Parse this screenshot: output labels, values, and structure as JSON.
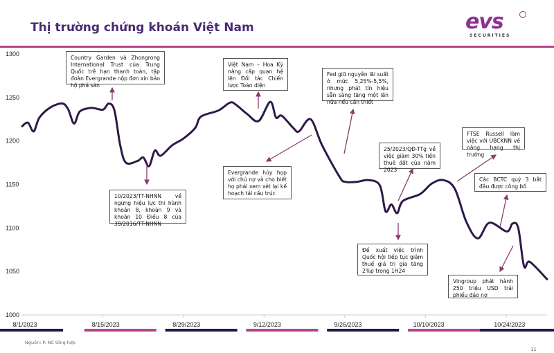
{
  "title": "Thị trường chứng khoán Việt Nam",
  "logo": {
    "text": "evs",
    "subtext": "SECURITIES"
  },
  "source": "Nguồn: P. NC tổng hợp",
  "page_number": "11",
  "colors": {
    "line": "#2e1a47",
    "arrow": "#8b3a6e",
    "accent": "#b5458a",
    "navy": "#1e1a4a",
    "title": "#4b2a72"
  },
  "chart_data": {
    "type": "line",
    "title": "",
    "xlabel": "",
    "ylabel": "",
    "ylim": [
      1000,
      1300
    ],
    "yticks": [
      1000,
      1050,
      1100,
      1150,
      1200,
      1250,
      1300
    ],
    "xticks": [
      "8/1/2023",
      "8/15/2023",
      "8/29/2023",
      "9/12/2023",
      "9/26/2023",
      "10/10/2023",
      "10/24/2023"
    ],
    "grid": false,
    "series": [
      {
        "points": [
          [
            "2023-08-01",
            1217
          ],
          [
            "2023-08-02",
            1221
          ],
          [
            "2023-08-03",
            1211
          ],
          [
            "2023-08-04",
            1227
          ],
          [
            "2023-08-06",
            1239
          ],
          [
            "2023-08-08",
            1243
          ],
          [
            "2023-08-09",
            1236
          ],
          [
            "2023-08-10",
            1220
          ],
          [
            "2023-08-11",
            1234
          ],
          [
            "2023-08-13",
            1238
          ],
          [
            "2023-08-15",
            1236
          ],
          [
            "2023-08-16",
            1243
          ],
          [
            "2023-08-17",
            1235
          ],
          [
            "2023-08-18",
            1195
          ],
          [
            "2023-08-19",
            1175
          ],
          [
            "2023-08-21",
            1177
          ],
          [
            "2023-08-22",
            1181
          ],
          [
            "2023-08-23",
            1171
          ],
          [
            "2023-08-24",
            1189
          ],
          [
            "2023-08-25",
            1183
          ],
          [
            "2023-08-27",
            1195
          ],
          [
            "2023-08-29",
            1203
          ],
          [
            "2023-08-31",
            1215
          ],
          [
            "2023-09-01",
            1228
          ],
          [
            "2023-09-04",
            1235
          ],
          [
            "2023-09-06",
            1244
          ],
          [
            "2023-09-07",
            1242
          ],
          [
            "2023-09-09",
            1231
          ],
          [
            "2023-09-11",
            1223
          ],
          [
            "2023-09-13",
            1245
          ],
          [
            "2023-09-14",
            1227
          ],
          [
            "2023-09-15",
            1229
          ],
          [
            "2023-09-17",
            1215
          ],
          [
            "2023-09-18",
            1211
          ],
          [
            "2023-09-20",
            1225
          ],
          [
            "2023-09-22",
            1195
          ],
          [
            "2023-09-25",
            1159
          ],
          [
            "2023-09-26",
            1153
          ],
          [
            "2023-09-28",
            1153
          ],
          [
            "2023-09-30",
            1155
          ],
          [
            "2023-10-02",
            1149
          ],
          [
            "2023-10-03",
            1119
          ],
          [
            "2023-10-04",
            1127
          ],
          [
            "2023-10-05",
            1117
          ],
          [
            "2023-10-06",
            1131
          ],
          [
            "2023-10-09",
            1139
          ],
          [
            "2023-10-11",
            1151
          ],
          [
            "2023-10-13",
            1155
          ],
          [
            "2023-10-15",
            1145
          ],
          [
            "2023-10-17",
            1107
          ],
          [
            "2023-10-19",
            1088
          ],
          [
            "2023-10-21",
            1106
          ],
          [
            "2023-10-24",
            1096
          ],
          [
            "2023-10-25",
            1105
          ],
          [
            "2023-10-26",
            1100
          ],
          [
            "2023-10-27",
            1056
          ],
          [
            "2023-10-28",
            1061
          ],
          [
            "2023-10-31",
            1041
          ]
        ]
      }
    ],
    "annotations": [
      "Country Garden và Zhongrong International Trust của Trung Quốc trễ hạn thanh toán, tập đoàn Evergrande nộp đơn xin bảo hộ phá sản",
      "10/2023/TT-NHNN về ngưng hiệu lực thi hành khoản 8, khoản 9 và khoản 10 Điều 8 của 39/2016/TT-NHNN",
      "Việt Nam – Hoa Kỳ nâng cấp quan hệ lên Đối tác Chiến lược Toàn diện",
      "Evergrande hủy họp với chủ nợ và cho biết họ phải xem xét lại kế hoạch tái cấu trúc",
      "Fed giữ nguyên lãi suất ở mức 5,25%-5,5%, nhưng phát tín hiệu sẵn sàng tăng một lần nữa nếu cần thiết",
      "25/2023/QĐ-TTg về việc giảm 30% tiền thuê đất của năm 2023",
      "Đề xuất việc trình Quốc hội tiếp tục giảm thuế giá trị gia tăng 2%p trong 1H24",
      "FTSE Russell làm việc với UBCKNN về nâng hạng thị trường",
      "Các BCTC quý 3 bắt đầu được công bố",
      "Vingroup phát hành 250 triệu USD trái phiếu đáo nợ"
    ]
  }
}
